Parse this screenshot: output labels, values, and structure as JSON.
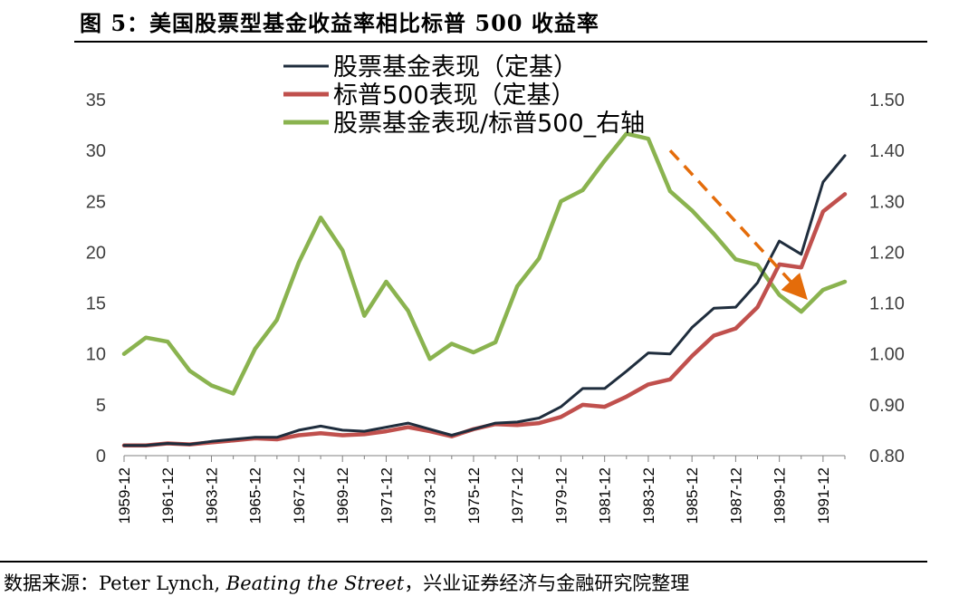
{
  "title": "图 5：美国股票型基金收益率相比标普 500 收益率",
  "source": {
    "prefix": "数据来源：Peter Lynch, ",
    "book": "Beating the Street",
    "suffix": "，兴业证券经济与金融研究院整理"
  },
  "chart_data": {
    "type": "line",
    "x": [
      "1959-12",
      "1960-12",
      "1961-12",
      "1962-12",
      "1963-12",
      "1964-12",
      "1965-12",
      "1966-12",
      "1967-12",
      "1968-12",
      "1969-12",
      "1970-12",
      "1971-12",
      "1972-12",
      "1973-12",
      "1974-12",
      "1975-12",
      "1976-12",
      "1977-12",
      "1978-12",
      "1979-12",
      "1980-12",
      "1981-12",
      "1982-12",
      "1983-12",
      "1984-12",
      "1985-12",
      "1986-12",
      "1987-12",
      "1988-12",
      "1989-12",
      "1990-12",
      "1991-12",
      "1992-12"
    ],
    "x_tick_labels": [
      "1959-12",
      "1961-12",
      "1963-12",
      "1965-12",
      "1967-12",
      "1969-12",
      "1971-12",
      "1973-12",
      "1975-12",
      "1977-12",
      "1979-12",
      "1981-12",
      "1983-12",
      "1985-12",
      "1987-12",
      "1989-12",
      "1991-12"
    ],
    "left_axis": {
      "ylim": [
        0,
        35
      ],
      "ticks": [
        "0",
        "5",
        "10",
        "15",
        "20",
        "25",
        "30",
        "35"
      ]
    },
    "right_axis": {
      "ylim": [
        0.8,
        1.5
      ],
      "ticks": [
        "0.80",
        "0.90",
        "1.00",
        "1.10",
        "1.20",
        "1.30",
        "1.40",
        "1.50"
      ]
    },
    "grid": false,
    "legend_position": "top-center",
    "series": [
      {
        "name": "股票基金表现（定基）",
        "axis": "left",
        "color": "#1f2d3d",
        "values": [
          1.0,
          1.0,
          1.2,
          1.1,
          1.4,
          1.6,
          1.8,
          1.8,
          2.5,
          2.9,
          2.5,
          2.4,
          2.8,
          3.2,
          2.6,
          2.0,
          2.6,
          3.2,
          3.3,
          3.7,
          4.8,
          6.6,
          6.6,
          8.3,
          10.1,
          10.0,
          12.6,
          14.5,
          14.6,
          17.0,
          21.1,
          19.8,
          26.9,
          29.5
        ]
      },
      {
        "name": "标普500表现（定基）",
        "axis": "left",
        "color": "#c0504d",
        "values": [
          1.0,
          1.0,
          1.2,
          1.1,
          1.3,
          1.5,
          1.7,
          1.6,
          2.0,
          2.2,
          2.0,
          2.1,
          2.4,
          2.8,
          2.4,
          1.9,
          2.6,
          3.1,
          3.0,
          3.2,
          3.8,
          5.0,
          4.8,
          5.8,
          7.0,
          7.5,
          9.8,
          11.8,
          12.5,
          14.6,
          18.8,
          18.5,
          24.0,
          25.7
        ]
      },
      {
        "name": "股票基金表现/标普500_右轴",
        "axis": "right",
        "color": "#8ab34f",
        "values": [
          1.0,
          1.032,
          1.024,
          0.967,
          0.938,
          0.922,
          1.01,
          1.067,
          1.18,
          1.268,
          1.204,
          1.075,
          1.142,
          1.085,
          0.99,
          1.02,
          1.003,
          1.023,
          1.133,
          1.188,
          1.3,
          1.322,
          1.38,
          1.433,
          1.423,
          1.32,
          1.282,
          1.236,
          1.186,
          1.175,
          1.116,
          1.083,
          1.126,
          1.142
        ]
      }
    ],
    "annotations": [
      {
        "type": "arrow",
        "style": "dashed",
        "color": "#e46c0a",
        "from_x": "1984-12",
        "from_y_right": 1.4,
        "to_x": "1990-12",
        "to_y_right": 1.12
      }
    ]
  }
}
